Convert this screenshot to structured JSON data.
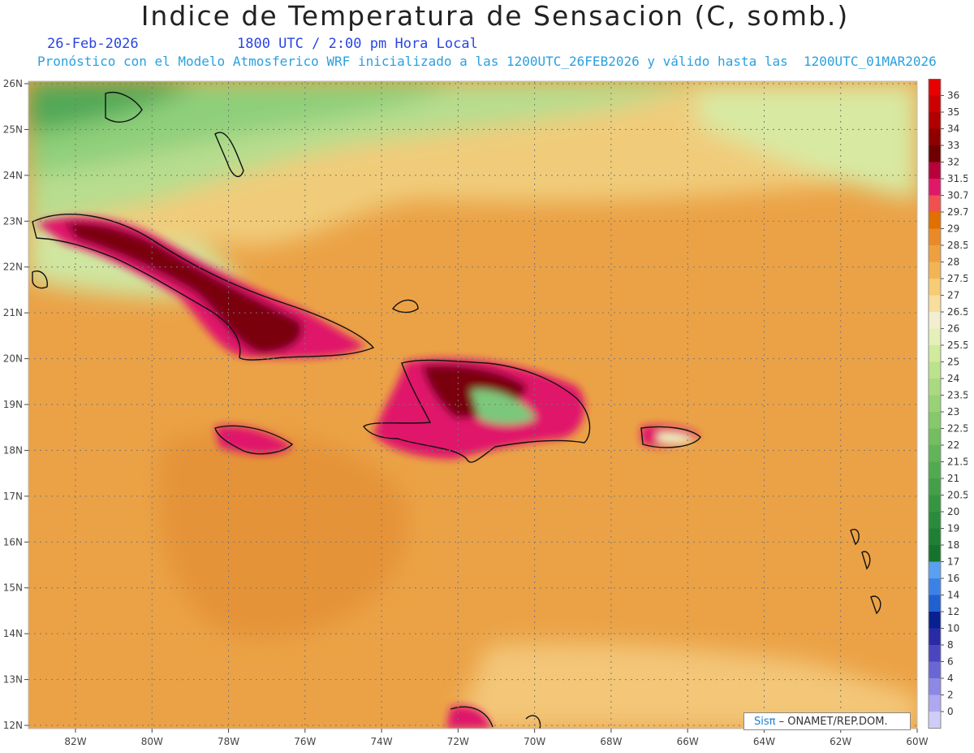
{
  "header": {
    "title": "Indice de Temperatura de Sensacion (C, somb.)",
    "date": "26-Feb-2026",
    "time": "1800 UTC / 2:00 pm Hora Local",
    "description": "Pronóstico con el Modelo Atmosferico WRF inicializado a las 1200UTC_26FEB2026 y válido hasta las  1200UTC_01MAR2026"
  },
  "map": {
    "lat_labels": [
      "26N",
      "25N",
      "24N",
      "23N",
      "22N",
      "21N",
      "20N",
      "19N",
      "18N",
      "17N",
      "16N",
      "15N",
      "14N",
      "13N",
      "12N"
    ],
    "lon_labels": [
      "82W",
      "80W",
      "78W",
      "76W",
      "74W",
      "72W",
      "70W",
      "68W",
      "66W",
      "64W",
      "62W",
      "60W"
    ]
  },
  "legend": {
    "levels": [
      "36",
      "35",
      "34",
      "33",
      "32",
      "31.5",
      "30.7",
      "29.7",
      "29",
      "28.5",
      "28",
      "27.5",
      "27",
      "26.5",
      "26",
      "25.5",
      "25",
      "24",
      "23.5",
      "23",
      "22.5",
      "22",
      "21.5",
      "21",
      "20.5",
      "20",
      "19",
      "18",
      "17",
      "16",
      "14",
      "12",
      "10",
      "8",
      "6",
      "4",
      "2",
      "0"
    ],
    "colors": [
      "#e60000",
      "#cc0000",
      "#b00000",
      "#8e0000",
      "#6e0000",
      "#b8003a",
      "#e0186a",
      "#f05050",
      "#e07000",
      "#e98a28",
      "#eea040",
      "#f2b454",
      "#f6cc74",
      "#f8de9c",
      "#f4eed0",
      "#e4f0b8",
      "#d0ea9e",
      "#bce28c",
      "#aada80",
      "#98d276",
      "#86c86c",
      "#74be62",
      "#62b458",
      "#52aa50",
      "#44a048",
      "#369640",
      "#2a8c3a",
      "#1f8034",
      "#15742c",
      "#5aa0f0",
      "#3c82e6",
      "#2060d0",
      "#082090",
      "#2a2aa6",
      "#4a46c0",
      "#6a66d4",
      "#8c88e4",
      "#aea8f0",
      "#d0ccf8"
    ]
  },
  "credit": {
    "logo": "Sisπ",
    "text": "– ONAMET/REP.DOM."
  },
  "colors": {
    "land_hot": "#7a0010",
    "land_cool": "#ecf2b8",
    "sea": "#eba246",
    "sea_north": "#f0cc7a",
    "green_north": "#8fcf7a"
  }
}
